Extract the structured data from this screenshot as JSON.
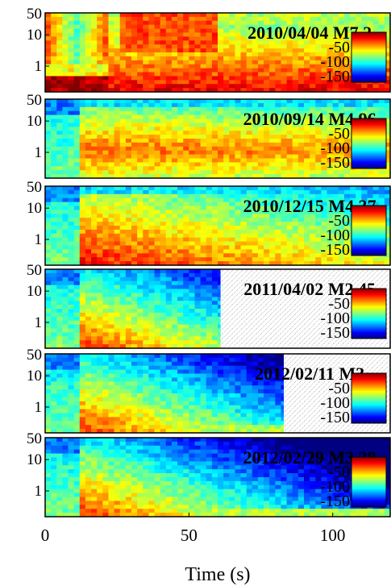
{
  "chart_data": {
    "type": "heatmap",
    "xlabel": "Time (s)",
    "xlim": [
      0,
      120
    ],
    "x_ticks": [
      "0",
      "50",
      "100"
    ],
    "y_ticks": [
      "50",
      "10",
      "1"
    ],
    "y_scale": "log",
    "colorbar": {
      "ticks": [
        "-50",
        "-100",
        "-150"
      ],
      "range": [
        -170,
        -30
      ],
      "colormap": "jet"
    },
    "colors": {
      "low": "#00007f",
      "mid": "#7fff7f",
      "high": "#7f0000"
    },
    "panels": [
      {
        "title": "2010/04/04 M7.2",
        "data_end_s": 120,
        "onset_s": 2,
        "notes": "long strong energy from ~25 s onward"
      },
      {
        "title": "2010/09/14 M4.96",
        "data_end_s": 120,
        "onset_s": 12,
        "notes": "moderate energy centered near 1-5 Hz"
      },
      {
        "title": "2010/12/15 M4.37",
        "data_end_s": 120,
        "onset_s": 12,
        "notes": "strong low-frequency energy after onset"
      },
      {
        "title": "2011/04/02 M2.45",
        "data_end_s": 61,
        "onset_s": 12,
        "notes": "record ends near 61 s; blank region shaded"
      },
      {
        "title": "2012/02/11 M3",
        "data_end_s": 83,
        "onset_s": 12,
        "notes": "record ends near 83 s; blank region shaded"
      },
      {
        "title": "2012/02/29 M3.38",
        "data_end_s": 120,
        "onset_s": 12,
        "notes": "energy decaying with time"
      }
    ]
  }
}
